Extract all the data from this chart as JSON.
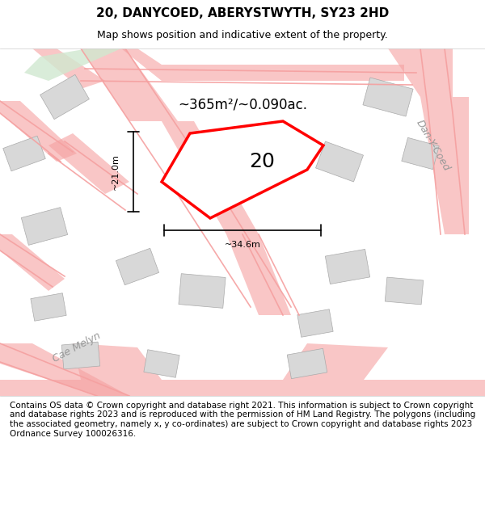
{
  "title": "20, DANYCOED, ABERYSTWYTH, SY23 2HD",
  "subtitle": "Map shows position and indicative extent of the property.",
  "footer": "Contains OS data © Crown copyright and database right 2021. This information is subject to Crown copyright and database rights 2023 and is reproduced with the permission of HM Land Registry. The polygons (including the associated geometry, namely x, y co-ordinates) are subject to Crown copyright and database rights 2023 Ordnance Survey 100026316.",
  "area_text": "~365m²/~0.090ac.",
  "label_number": "20",
  "dim_width": "~34.6m",
  "dim_height": "~21.0m",
  "street_label_1": "Cae Melyn",
  "street_label_2": "Dan-Y-Coed",
  "bg_color": "#f5f5f5",
  "map_bg": "#ffffff",
  "road_color": "#f5a0a0",
  "building_fill": "#e0e0e0",
  "green_fill": "#d0e8d0",
  "highlight_poly_color": "#ff0000",
  "highlight_poly_fill": "none",
  "dim_line_color": "#000000",
  "title_fontsize": 11,
  "subtitle_fontsize": 9,
  "footer_fontsize": 7.5
}
